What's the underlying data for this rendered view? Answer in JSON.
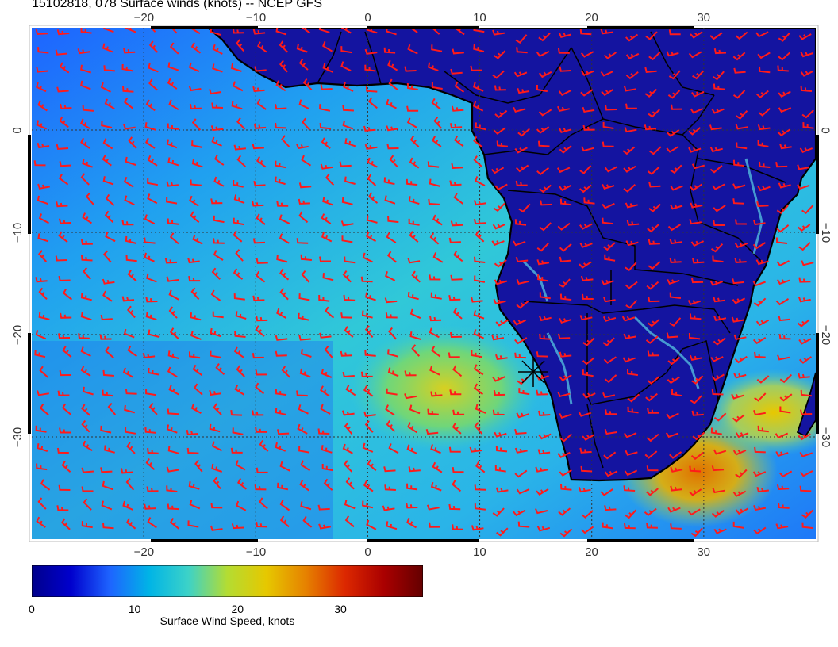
{
  "title": "15102818, 078 Surface winds (knots) -- NCEP GFS",
  "axes": {
    "lon_ticks": [
      "−20",
      "−10",
      "0",
      "10",
      "20",
      "30"
    ],
    "lat_ticks": [
      "0",
      "−10",
      "−20",
      "−30"
    ],
    "lon_range": [
      -30,
      40
    ],
    "lat_range": [
      -40,
      10
    ]
  },
  "colorbar": {
    "label": "Surface Wind Speed, knots",
    "ticks": [
      "0",
      "10",
      "20",
      "30"
    ],
    "range": [
      0,
      38
    ],
    "colors": [
      "#00008b",
      "#0000cd",
      "#1e64ff",
      "#00b4e6",
      "#3cd2c8",
      "#b4dc32",
      "#e6c800",
      "#e68200",
      "#dc2800",
      "#aa0000",
      "#640000"
    ]
  },
  "colors": {
    "barb": "#ff1a1a",
    "land": "#1414a0",
    "coast": "#000000"
  }
}
